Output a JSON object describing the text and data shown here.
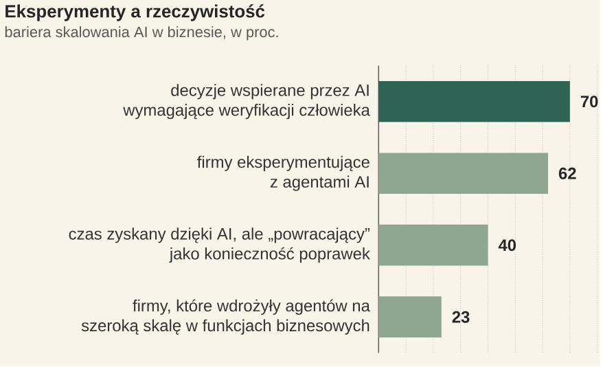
{
  "chart_data": {
    "type": "bar",
    "orientation": "horizontal",
    "title": "Eksperymenty a rzeczywistość",
    "subtitle": "bariera skalowania AI w biznesie, w proc.",
    "categories": [
      "decyzje wspierane przez AI\nwymagające weryfikacji człowieka",
      "firmy eksperymentujące\nz agentami AI",
      "czas zyskany dzięki AI, ale „powracający”\njako konieczność poprawek",
      "firmy, które wdrożyły agentów na\nszeroką skalę w funkcjach biznesowych"
    ],
    "values": [
      70,
      62,
      40,
      23
    ],
    "colors": [
      "#2e6454",
      "#8fa68f",
      "#8fa68f",
      "#8fa68f"
    ],
    "xlim": [
      0,
      80
    ],
    "grid": "x",
    "data_labels": true
  }
}
